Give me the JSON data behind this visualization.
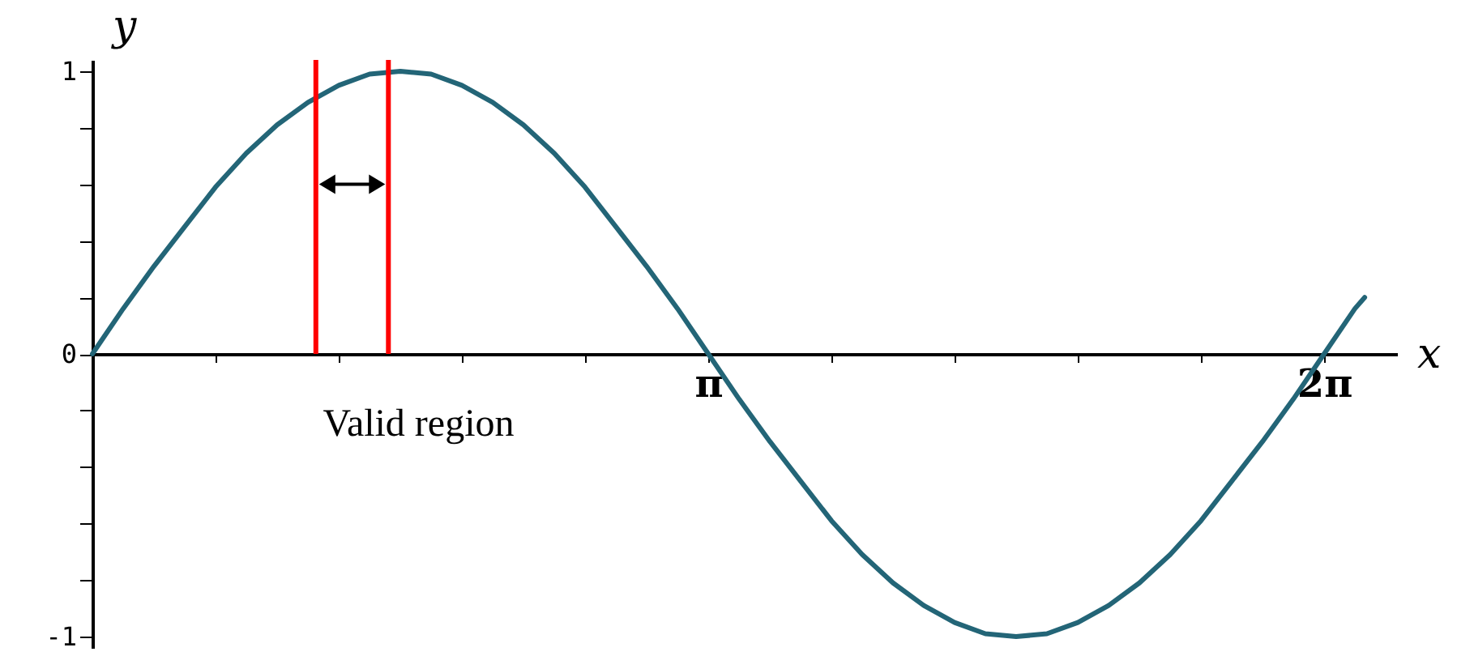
{
  "chart_data": {
    "type": "line",
    "xlabel": "x",
    "ylabel": "y",
    "x": [
      0,
      0.157,
      0.314,
      0.471,
      0.628,
      0.785,
      0.942,
      1.1,
      1.257,
      1.414,
      1.571,
      1.728,
      1.885,
      2.042,
      2.199,
      2.356,
      2.513,
      2.67,
      2.827,
      2.985,
      3.142,
      3.299,
      3.456,
      3.613,
      3.77,
      3.927,
      4.084,
      4.241,
      4.398,
      4.555,
      4.712,
      4.869,
      5.027,
      5.184,
      5.341,
      5.498,
      5.655,
      5.812,
      5.969,
      6.126,
      6.283,
      6.44,
      6.49
    ],
    "series": [
      {
        "color": "#236577",
        "values": [
          0,
          0.16,
          0.31,
          0.45,
          0.59,
          0.71,
          0.81,
          0.89,
          0.95,
          0.99,
          1,
          0.99,
          0.95,
          0.89,
          0.81,
          0.71,
          0.59,
          0.45,
          0.31,
          0.16,
          0,
          -0.16,
          -0.31,
          -0.45,
          -0.59,
          -0.71,
          -0.81,
          -0.89,
          -0.95,
          -0.99,
          -1,
          -0.99,
          -0.95,
          -0.89,
          -0.81,
          -0.71,
          -0.59,
          -0.45,
          -0.31,
          -0.16,
          0,
          0.16,
          0.2
        ]
      }
    ],
    "xlim": [
      0,
      6.655
    ],
    "ylim": [
      -1.04,
      1.04
    ],
    "xticks": [
      {
        "value": 0.6283,
        "label": null
      },
      {
        "value": 1.2566,
        "label": null
      },
      {
        "value": 1.885,
        "label": null
      },
      {
        "value": 2.5133,
        "label": null
      },
      {
        "value": 3.1416,
        "label": "π"
      },
      {
        "value": 3.7699,
        "label": null
      },
      {
        "value": 4.3982,
        "label": null
      },
      {
        "value": 5.0265,
        "label": null
      },
      {
        "value": 5.6549,
        "label": null
      },
      {
        "value": 6.2832,
        "label": "2π"
      }
    ],
    "yticks": [
      -1,
      {
        "value": -0.8,
        "label": null
      },
      {
        "value": -0.6,
        "label": null
      },
      {
        "value": -0.4,
        "label": null
      },
      {
        "value": -0.2,
        "label": null
      },
      0,
      {
        "value": 0.2,
        "label": null
      },
      {
        "value": 0.4,
        "label": null
      },
      {
        "value": 0.6,
        "label": null
      },
      {
        "value": 0.8,
        "label": null
      },
      1
    ],
    "ref_lines": [
      {
        "axis": "x",
        "value": 1.14,
        "color": "#ff0000"
      },
      {
        "axis": "x",
        "value": 1.51,
        "color": "#ff0000"
      }
    ],
    "annotations": [
      "Valid region"
    ],
    "grid": false,
    "marker": "none",
    "line_style": "solid"
  }
}
